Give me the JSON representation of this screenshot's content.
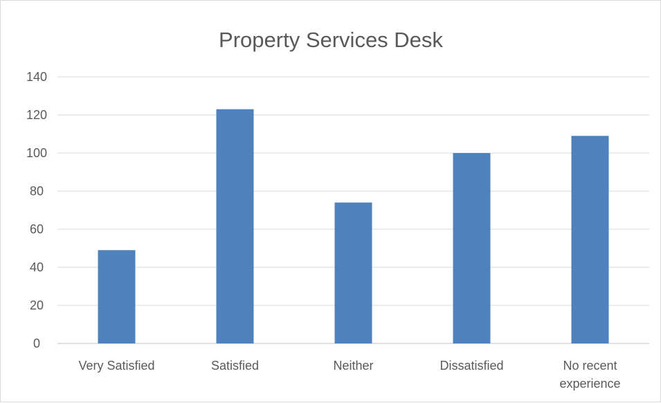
{
  "chart_data": {
    "type": "bar",
    "title": "Property Services Desk",
    "categories": [
      [
        "Very Satisfied"
      ],
      [
        "Satisfied"
      ],
      [
        "Neither"
      ],
      [
        "Dissatisfied"
      ],
      [
        "No recent",
        "experience"
      ]
    ],
    "values": [
      49,
      123,
      74,
      100,
      109
    ],
    "ylim": [
      0,
      140
    ],
    "yticks": [
      0,
      20,
      40,
      60,
      80,
      100,
      120,
      140
    ],
    "grid": true,
    "legend": "none",
    "bar_color": "#4f81bd"
  }
}
